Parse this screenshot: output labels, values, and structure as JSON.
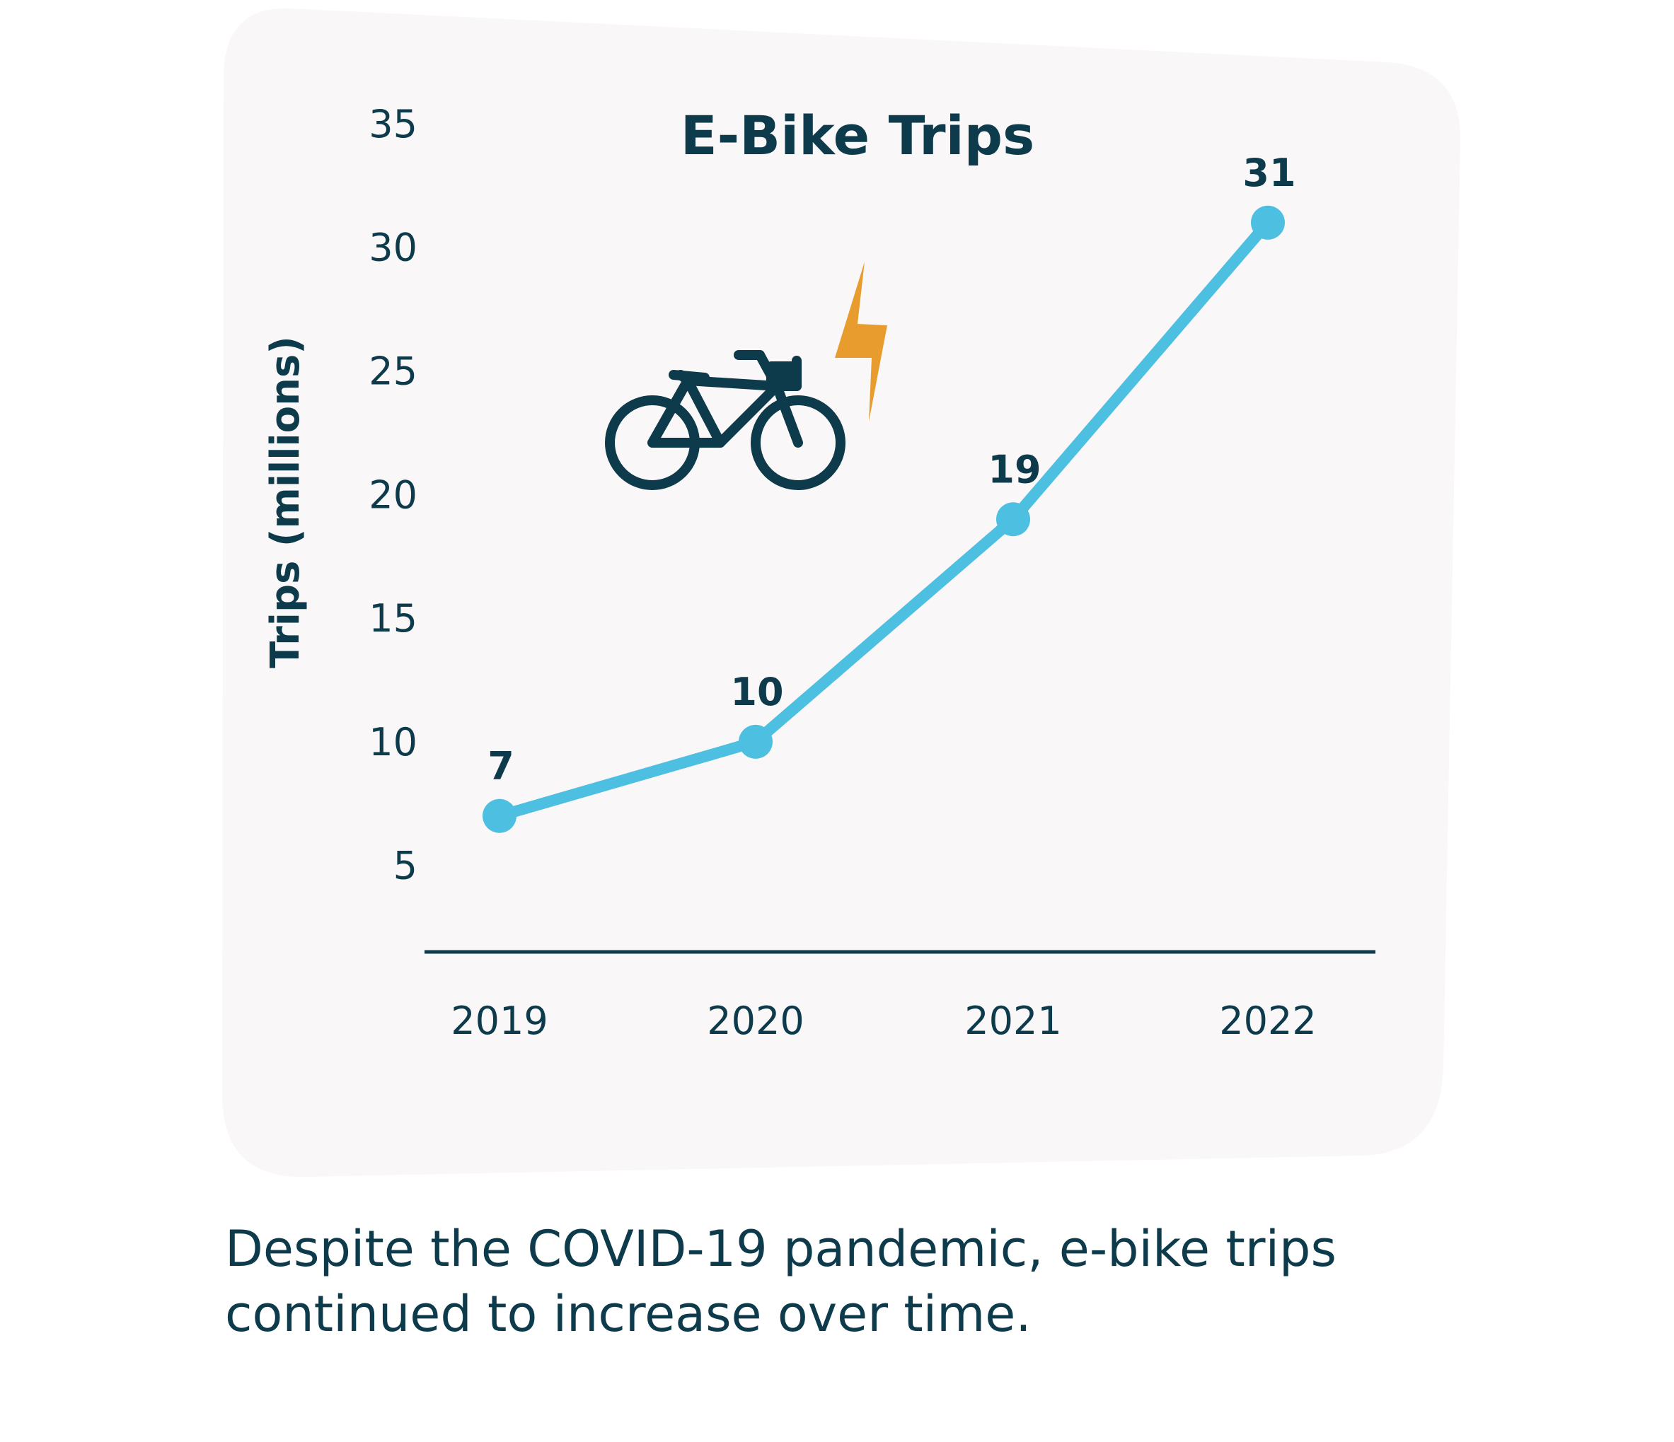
{
  "chart_data": {
    "type": "line",
    "title": "E-Bike Trips",
    "ylabel": "Trips (millions)",
    "xlabel": "",
    "categories": [
      "2019",
      "2020",
      "2021",
      "2022"
    ],
    "series": [
      {
        "values": [
          7,
          10,
          19,
          31
        ],
        "labels": [
          "7",
          "10",
          "19",
          "31"
        ]
      }
    ],
    "yticks": [
      "5",
      "10",
      "15",
      "20",
      "25",
      "30",
      "35"
    ],
    "ylim": [
      1.5,
      36
    ],
    "grid": false,
    "legend": "none"
  },
  "caption": "Despite the COVID-19 pandemic, e-bike trips continued to increase over time.",
  "colors": {
    "line": "#4dbfe0",
    "text": "#0d3b4b",
    "panel": "#f9f7f7",
    "bolt": "#e99c2e",
    "bike": "#0d3b4b"
  },
  "icons": [
    "bicycle-icon",
    "lightning-bolt-icon"
  ]
}
